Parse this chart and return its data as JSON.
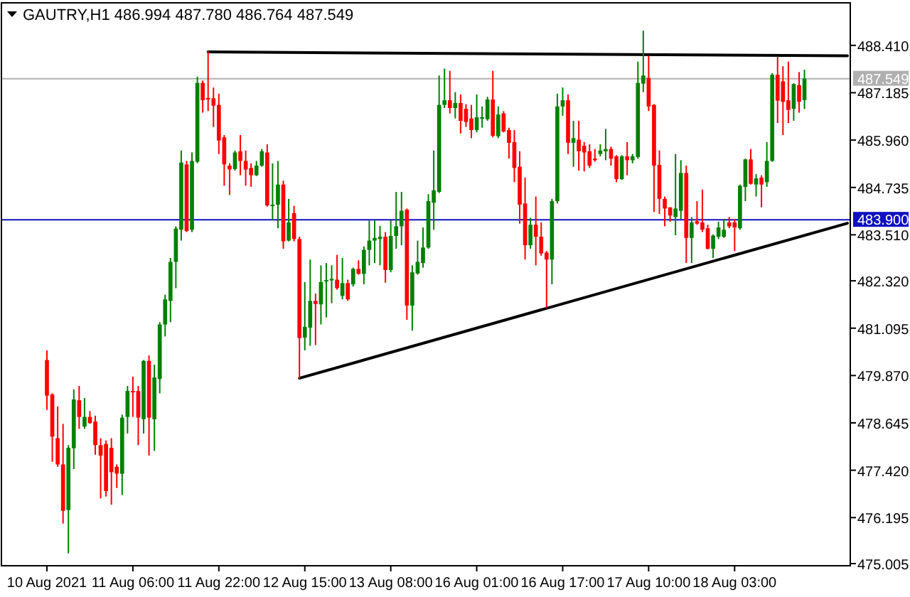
{
  "chart_data": {
    "type": "candlestick",
    "title": "GAUTRY,H1 486.994 487.780 486.764 487.549",
    "categories": [
      "10 Aug 2021",
      null,
      null,
      null,
      null,
      null,
      null,
      null,
      null,
      null,
      null,
      null,
      null,
      null,
      null,
      null,
      "11 Aug 06:00",
      null,
      null,
      null,
      null,
      null,
      null,
      null,
      null,
      null,
      null,
      null,
      null,
      null,
      null,
      null,
      "11 Aug 22:00",
      null,
      null,
      null,
      null,
      null,
      null,
      null,
      null,
      null,
      null,
      null,
      null,
      null,
      null,
      null,
      "12 Aug 15:00",
      null,
      null,
      null,
      null,
      null,
      null,
      null,
      null,
      null,
      null,
      null,
      null,
      null,
      null,
      null,
      "13 Aug 08:00",
      null,
      null,
      null,
      null,
      null,
      null,
      null,
      null,
      null,
      null,
      null,
      null,
      null,
      null,
      null,
      "16 Aug 01:00",
      null,
      null,
      null,
      null,
      null,
      null,
      null,
      null,
      null,
      null,
      null,
      null,
      null,
      null,
      null,
      "16 Aug 17:00",
      null,
      null,
      null,
      null,
      null,
      null,
      null,
      null,
      null,
      null,
      null,
      null,
      null,
      null,
      null,
      "17 Aug 10:00",
      null,
      null,
      null,
      null,
      null,
      null,
      null,
      null,
      null,
      null,
      null,
      null,
      null,
      null,
      null,
      "18 Aug 03:00",
      null,
      null,
      null,
      null,
      null,
      null,
      null,
      null,
      null,
      null,
      null,
      null,
      null,
      null,
      null,
      null,
      null,
      null,
      null,
      null,
      null
    ],
    "colors": [
      "#ff0000",
      "#ff0000",
      "#ff0000",
      "#ff0000",
      "#008000",
      "#008000",
      "#ff0000",
      "#008000",
      "#ff0000",
      "#ff0000",
      "#ff0000",
      "#ff0000",
      "#ff0000",
      "#ff0000",
      "#008000",
      "#008000",
      "#ff0000",
      "#ff0000",
      "#008000",
      "#ff0000",
      "#008000",
      "#008000",
      "#008000",
      "#008000",
      "#008000",
      "#008000",
      "#ff0000",
      "#008000",
      "#008000",
      "#ff0000",
      "#ff0000",
      "#ff0000",
      "#ff0000",
      "#ff0000",
      "#ff0000",
      "#008000",
      "#ff0000",
      "#ff0000",
      "#ff0000",
      "#008000",
      "#008000",
      "#ff0000",
      "#008000",
      "#008000",
      "#ff0000",
      "#008000",
      "#ff0000",
      "#ff0000",
      "#008000",
      "#008000",
      "#ff0000",
      "#008000",
      "#008000",
      "#008000",
      "#ff0000",
      "#008000",
      "#ff0000",
      "#008000",
      "#ff0000",
      "#008000",
      "#008000",
      "#008000",
      "#008000",
      "#ff0000",
      "#008000",
      "#008000",
      "#008000",
      "#ff0000",
      "#008000",
      "#008000",
      "#008000",
      "#008000",
      "#008000",
      "#008000",
      "#008000",
      "#ff0000",
      "#008000",
      "#ff0000",
      "#ff0000",
      "#ff0000",
      "#008000",
      "#008000",
      "#008000",
      "#ff0000",
      "#008000",
      "#ff0000",
      "#ff0000",
      "#ff0000",
      "#ff0000",
      "#ff0000",
      "#008000",
      "#ff0000",
      "#ff0000",
      "#ff0000",
      "#008000",
      "#008000",
      "#008000",
      "#ff0000",
      "#008000",
      "#ff0000",
      "#ff0000",
      "#ff0000",
      "#ff0000",
      "#008000",
      "#008000",
      "#ff0000",
      "#ff0000",
      "#008000",
      "#ff0000",
      "#008000",
      "#008000",
      "#008000",
      "#ff0000",
      "#ff0000",
      "#ff0000",
      "#ff0000",
      "#ff0000",
      "#008000",
      "#008000",
      "#ff0000",
      "#008000",
      "#ff0000",
      "#ff0000",
      "#ff0000",
      "#008000",
      "#008000",
      "#008000",
      "#ff0000",
      "#ff0000",
      "#008000",
      "#008000",
      "#ff0000",
      "#008000",
      "#ff0000",
      "#008000",
      "#008000",
      "#ff0000",
      "#ff0000",
      "#ff0000",
      "#008000",
      "#ff0000",
      "#008000",
      null,
      null,
      null,
      null,
      null,
      null,
      null,
      null
    ],
    "ohlc": [
      [
        480.27,
        480.52,
        478.98,
        479.35
      ],
      [
        479.38,
        479.41,
        477.64,
        478.29
      ],
      [
        478.25,
        479.07,
        477.51,
        477.57
      ],
      [
        477.57,
        478.62,
        476.04,
        476.37
      ],
      [
        476.39,
        478.07,
        475.27,
        478.0
      ],
      [
        477.99,
        479.51,
        477.45,
        479.25
      ],
      [
        479.23,
        479.6,
        478.49,
        478.8
      ],
      [
        478.55,
        479.29,
        478.49,
        478.8
      ],
      [
        478.8,
        478.95,
        478.62,
        478.64
      ],
      [
        478.68,
        478.83,
        477.82,
        478.07
      ],
      [
        478.07,
        478.25,
        476.69,
        477.8
      ],
      [
        478.1,
        478.19,
        476.74,
        476.88
      ],
      [
        478.0,
        478.25,
        476.53,
        477.37
      ],
      [
        477.51,
        477.57,
        476.96,
        477.33
      ],
      [
        477.33,
        478.86,
        476.78,
        478.78
      ],
      [
        478.8,
        479.6,
        478.37,
        479.47
      ],
      [
        479.47,
        479.84,
        478.8,
        479.44
      ],
      [
        479.47,
        479.6,
        478.07,
        478.78
      ],
      [
        478.74,
        480.27,
        478.37,
        480.25
      ],
      [
        480.25,
        480.39,
        477.8,
        478.78
      ],
      [
        478.74,
        480.15,
        477.92,
        479.82
      ],
      [
        479.78,
        481.25,
        479.41,
        481.19
      ],
      [
        481.19,
        481.96,
        480.88,
        481.84
      ],
      [
        481.8,
        482.91,
        481.25,
        482.81
      ],
      [
        482.81,
        483.73,
        482.13,
        483.67
      ],
      [
        483.64,
        485.69,
        483.36,
        485.38
      ],
      [
        485.33,
        485.42,
        483.58,
        483.61
      ],
      [
        483.64,
        485.64,
        483.58,
        485.42
      ],
      [
        485.4,
        487.6,
        485.36,
        487.44
      ],
      [
        487.44,
        487.5,
        486.67,
        486.99
      ],
      [
        487.05,
        488.26,
        486.71,
        487.01
      ],
      [
        487.04,
        487.32,
        486.3,
        486.85
      ],
      [
        486.87,
        487.16,
        485.6,
        485.95
      ],
      [
        486.03,
        486.09,
        484.78,
        485.33
      ],
      [
        485.3,
        485.36,
        484.54,
        485.2
      ],
      [
        485.21,
        485.69,
        485.17,
        485.64
      ],
      [
        485.67,
        486.09,
        485.05,
        485.42
      ],
      [
        485.42,
        485.69,
        484.78,
        485.2
      ],
      [
        485.24,
        485.36,
        484.75,
        485.05
      ],
      [
        485.05,
        485.42,
        485.03,
        485.3
      ],
      [
        485.3,
        485.73,
        485.27,
        485.67
      ],
      [
        485.64,
        485.85,
        484.24,
        484.27
      ],
      [
        484.27,
        485.36,
        483.89,
        484.29
      ],
      [
        484.29,
        485.42,
        483.68,
        484.81
      ],
      [
        484.81,
        484.91,
        483.15,
        483.34
      ],
      [
        483.36,
        484.44,
        483.34,
        483.83
      ],
      [
        484.07,
        484.26,
        483.34,
        483.4
      ],
      [
        483.4,
        483.46,
        479.78,
        480.84
      ],
      [
        480.85,
        482.29,
        480.52,
        481.13
      ],
      [
        481.11,
        482.87,
        480.64,
        481.8
      ],
      [
        481.8,
        481.99,
        480.66,
        481.72
      ],
      [
        481.71,
        482.72,
        481.19,
        482.29
      ],
      [
        482.32,
        482.78,
        481.37,
        482.34
      ],
      [
        482.33,
        482.72,
        481.74,
        482.37
      ],
      [
        482.35,
        482.99,
        482.09,
        482.13
      ],
      [
        481.93,
        482.91,
        481.84,
        482.26
      ],
      [
        482.26,
        482.35,
        481.8,
        481.84
      ],
      [
        482.23,
        482.66,
        482.17,
        482.63
      ],
      [
        482.63,
        482.85,
        482.48,
        482.5
      ],
      [
        482.5,
        483.21,
        482.23,
        483.12
      ],
      [
        483.12,
        483.88,
        482.72,
        483.36
      ],
      [
        483.36,
        483.88,
        482.78,
        483.43
      ],
      [
        483.4,
        483.74,
        482.72,
        483.46
      ],
      [
        483.46,
        483.58,
        482.27,
        482.6
      ],
      [
        482.6,
        483.89,
        482.54,
        483.48
      ],
      [
        483.48,
        484.62,
        483.15,
        483.73
      ],
      [
        483.73,
        484.62,
        483.24,
        484.13
      ],
      [
        484.16,
        484.19,
        481.31,
        481.68
      ],
      [
        481.68,
        482.72,
        481.03,
        482.54
      ],
      [
        482.51,
        483.36,
        482.48,
        482.81
      ],
      [
        482.78,
        483.7,
        482.66,
        483.18
      ],
      [
        483.18,
        484.56,
        483.15,
        484.38
      ],
      [
        484.34,
        485.69,
        483.64,
        484.66
      ],
      [
        484.62,
        487.63,
        484.59,
        486.87
      ],
      [
        486.87,
        487.81,
        486.79,
        486.99
      ],
      [
        486.99,
        487.75,
        486.65,
        486.79
      ],
      [
        486.79,
        487.2,
        486.52,
        486.92
      ],
      [
        486.92,
        487.14,
        486.13,
        486.46
      ],
      [
        486.77,
        486.89,
        486.3,
        486.43
      ],
      [
        486.52,
        486.87,
        486.01,
        486.22
      ],
      [
        486.22,
        487.14,
        486.16,
        486.55
      ],
      [
        486.52,
        486.83,
        486.28,
        486.55
      ],
      [
        486.5,
        487.08,
        486.46,
        487.01
      ],
      [
        487.01,
        487.75,
        486.03,
        486.07
      ],
      [
        486.06,
        486.83,
        486.01,
        486.62
      ],
      [
        486.65,
        486.71,
        486.16,
        486.18
      ],
      [
        486.22,
        486.28,
        485.48,
        485.89
      ],
      [
        485.91,
        486.22,
        484.87,
        485.24
      ],
      [
        485.27,
        485.67,
        483.8,
        484.29
      ],
      [
        484.32,
        484.99,
        482.87,
        483.24
      ],
      [
        483.24,
        483.95,
        483.15,
        483.77
      ],
      [
        483.77,
        484.5,
        482.72,
        483.46
      ],
      [
        483.46,
        483.83,
        482.97,
        483.03
      ],
      [
        483.05,
        483.09,
        481.62,
        482.87
      ],
      [
        482.87,
        484.44,
        482.23,
        484.38
      ],
      [
        484.38,
        487.16,
        484.32,
        486.83
      ],
      [
        486.83,
        487.32,
        486.59,
        486.99
      ],
      [
        486.99,
        487.14,
        485.6,
        485.89
      ],
      [
        485.89,
        486.46,
        485.27,
        486.01
      ],
      [
        485.97,
        486.46,
        485.17,
        485.67
      ],
      [
        485.81,
        485.91,
        485.15,
        485.64
      ],
      [
        485.67,
        485.85,
        485.24,
        485.3
      ],
      [
        485.48,
        485.73,
        485.4,
        485.44
      ],
      [
        485.6,
        485.85,
        485.54,
        485.69
      ],
      [
        485.67,
        486.25,
        485.44,
        485.73
      ],
      [
        485.73,
        485.79,
        485.3,
        485.48
      ],
      [
        485.54,
        485.57,
        484.87,
        484.95
      ],
      [
        484.95,
        485.57,
        484.93,
        485.54
      ],
      [
        485.54,
        485.91,
        485.05,
        485.44
      ],
      [
        485.44,
        485.6,
        485.36,
        485.54
      ],
      [
        485.52,
        487.99,
        485.48,
        487.44
      ],
      [
        487.42,
        488.79,
        487.2,
        487.63
      ],
      [
        487.57,
        488.14,
        486.71,
        486.83
      ],
      [
        486.87,
        486.89,
        484.1,
        485.3
      ],
      [
        485.32,
        485.69,
        484.05,
        484.44
      ],
      [
        484.44,
        484.5,
        483.73,
        484.19
      ],
      [
        484.22,
        484.22,
        483.85,
        484.01
      ],
      [
        483.97,
        485.6,
        483.5,
        484.19
      ],
      [
        484.13,
        485.44,
        483.92,
        485.11
      ],
      [
        485.11,
        485.3,
        482.78,
        483.43
      ],
      [
        483.43,
        483.97,
        482.78,
        483.83
      ],
      [
        483.86,
        484.38,
        483.77,
        483.8
      ],
      [
        483.83,
        484.68,
        483.58,
        483.64
      ],
      [
        483.68,
        483.77,
        483.13,
        483.15
      ],
      [
        483.15,
        483.52,
        482.91,
        483.49
      ],
      [
        483.46,
        483.85,
        483.4,
        483.7
      ],
      [
        483.46,
        483.92,
        483.43,
        483.64
      ],
      [
        483.83,
        483.97,
        483.68,
        483.73
      ],
      [
        483.83,
        483.92,
        483.09,
        483.7
      ],
      [
        483.68,
        484.81,
        483.64,
        484.78
      ],
      [
        484.75,
        485.48,
        484.38,
        485.46
      ],
      [
        485.46,
        485.73,
        484.81,
        484.83
      ],
      [
        484.81,
        485.08,
        484.5,
        484.97
      ],
      [
        484.99,
        485.05,
        484.22,
        484.81
      ],
      [
        484.87,
        485.91,
        484.75,
        485.42
      ],
      [
        485.42,
        487.69,
        485.4,
        487.65
      ],
      [
        487.65,
        488.12,
        486.4,
        486.98
      ],
      [
        487.48,
        487.87,
        486.09,
        486.95
      ],
      [
        486.99,
        487.99,
        486.4,
        486.74
      ],
      [
        486.77,
        487.43,
        486.46,
        487.41
      ],
      [
        487.38,
        487.72,
        486.67,
        486.95
      ],
      [
        486.994,
        487.78,
        486.764,
        487.549
      ],
      null,
      null,
      null,
      null,
      null,
      null,
      null,
      null
    ],
    "series": [
      {
        "type": "line",
        "color": "#000000",
        "values": [
          null,
          null,
          null,
          null,
          null,
          null,
          null,
          null,
          null,
          null,
          null,
          null,
          null,
          null,
          null,
          null,
          null,
          null,
          null,
          null,
          null,
          null,
          null,
          null,
          null,
          null,
          null,
          null,
          null,
          null,
          488.24,
          null,
          null,
          null,
          null,
          null,
          null,
          null,
          null,
          null,
          null,
          null,
          null,
          null,
          null,
          null,
          null,
          null,
          null,
          null,
          null,
          null,
          null,
          null,
          null,
          null,
          null,
          null,
          null,
          null,
          null,
          null,
          null,
          null,
          null,
          null,
          null,
          null,
          null,
          null,
          null,
          null,
          null,
          null,
          null,
          null,
          null,
          null,
          null,
          null,
          null,
          null,
          null,
          null,
          null,
          null,
          null,
          null,
          null,
          null,
          null,
          null,
          null,
          null,
          null,
          null,
          null,
          null,
          null,
          null,
          null,
          null,
          null,
          null,
          null,
          null,
          null,
          null,
          null,
          null,
          null,
          null,
          null,
          null,
          null,
          null,
          null,
          null,
          null,
          null,
          null,
          null,
          null,
          null,
          null,
          null,
          null,
          null,
          null,
          null,
          null,
          null,
          null,
          null,
          null,
          null,
          null,
          null,
          null,
          null,
          null,
          null,
          null,
          null,
          null,
          null,
          null,
          null,
          null,
          488.14
        ]
      },
      {
        "type": "line",
        "color": "#000000",
        "values": [
          null,
          null,
          null,
          null,
          null,
          null,
          null,
          null,
          null,
          null,
          null,
          null,
          null,
          null,
          null,
          null,
          null,
          null,
          null,
          null,
          null,
          null,
          null,
          null,
          null,
          null,
          null,
          null,
          null,
          null,
          null,
          null,
          null,
          null,
          null,
          null,
          null,
          null,
          null,
          null,
          null,
          null,
          null,
          null,
          null,
          null,
          null,
          479.8,
          null,
          null,
          null,
          null,
          null,
          null,
          null,
          null,
          null,
          null,
          null,
          null,
          null,
          null,
          null,
          null,
          null,
          null,
          null,
          null,
          null,
          null,
          null,
          null,
          null,
          null,
          null,
          null,
          null,
          null,
          null,
          null,
          null,
          null,
          null,
          null,
          null,
          null,
          null,
          null,
          null,
          null,
          null,
          null,
          null,
          null,
          null,
          null,
          null,
          null,
          null,
          null,
          null,
          null,
          null,
          null,
          null,
          null,
          null,
          null,
          null,
          null,
          null,
          null,
          null,
          null,
          null,
          null,
          null,
          null,
          null,
          null,
          null,
          null,
          null,
          null,
          null,
          null,
          null,
          null,
          null,
          null,
          null,
          null,
          null,
          null,
          null,
          null,
          null,
          null,
          null,
          null,
          null,
          null,
          null,
          null,
          null,
          null,
          null,
          null,
          null,
          483.81
        ]
      }
    ],
    "ref_lines": [
      {
        "axis": "y",
        "value": 487.549,
        "label": "487.549",
        "color": "#b0b0b0"
      },
      {
        "axis": "y",
        "value": 483.9,
        "label": "483.900",
        "color": "#1010c0"
      }
    ],
    "ylim": [
      474.95,
      489.51
    ],
    "yticks": [
      {
        "value": 475.005,
        "label": "475.005"
      },
      {
        "value": 476.195,
        "label": "476.195"
      },
      {
        "value": 477.42,
        "label": "477.420"
      },
      {
        "value": 478.645,
        "label": "478.645"
      },
      {
        "value": 479.87,
        "label": "479.870"
      },
      {
        "value": 481.095,
        "label": "481.095"
      },
      {
        "value": 482.32,
        "label": "482.320"
      },
      {
        "value": 483.51,
        "label": "483.510"
      },
      {
        "value": 484.735,
        "label": "484.735"
      },
      {
        "value": 485.96,
        "label": "485.960"
      },
      {
        "value": 487.185,
        "label": "487.185"
      },
      {
        "value": 488.41,
        "label": "488.410"
      }
    ]
  }
}
